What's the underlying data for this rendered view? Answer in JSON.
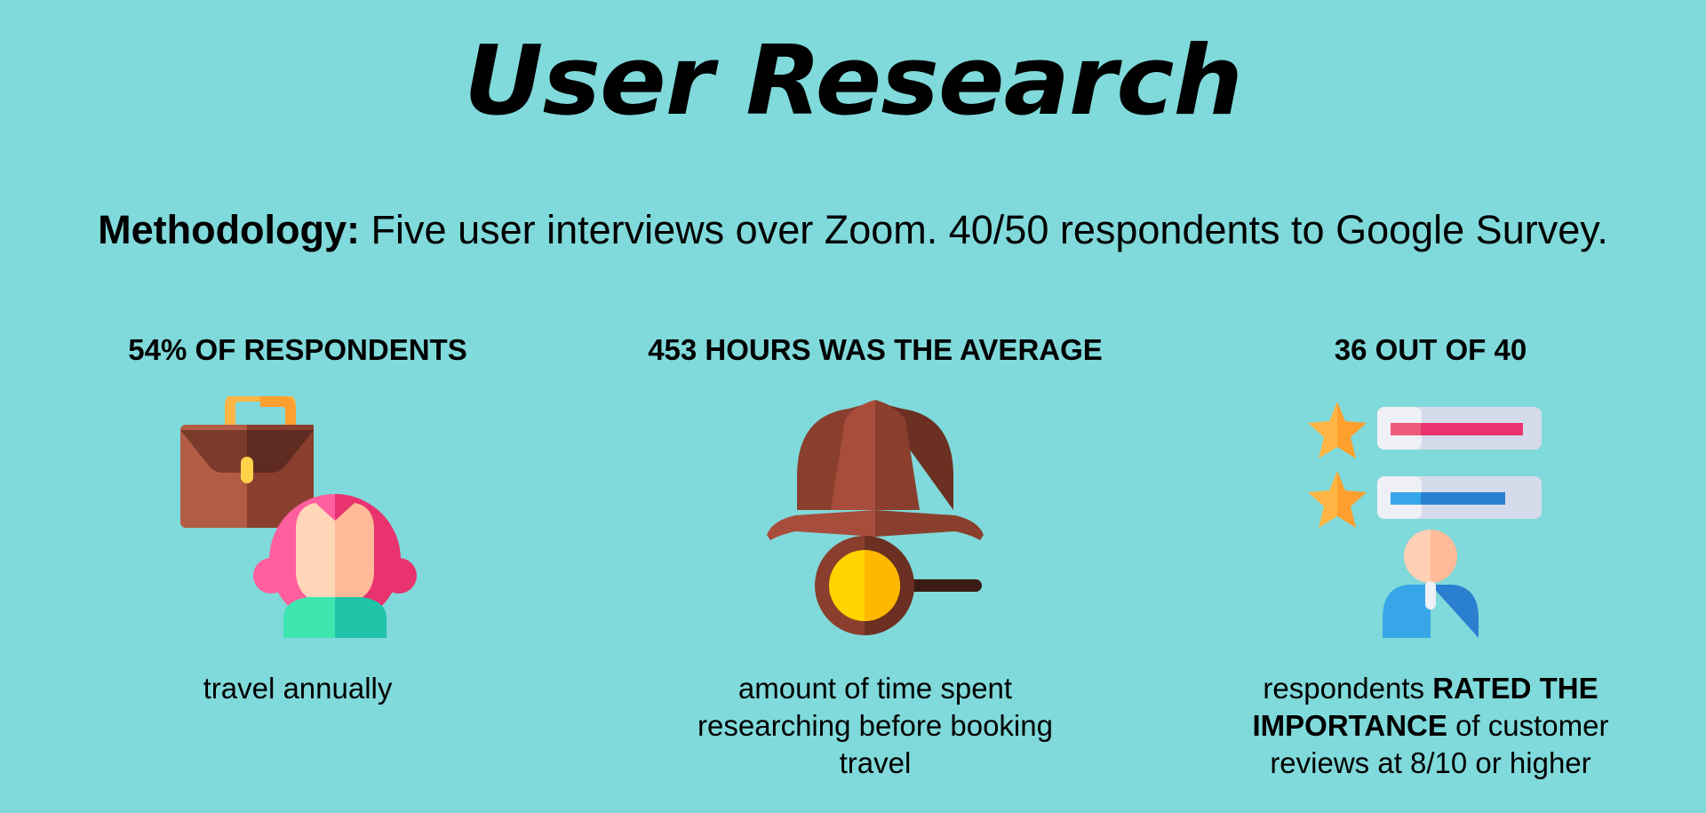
{
  "title": "User Research",
  "methodology": {
    "label": "Methodology:",
    "text": " Five user interviews over Zoom. 40/50 respondents to Google Survey."
  },
  "stats": [
    {
      "heading": "54% OF RESPONDENTS",
      "icon": "traveler-briefcase-icon",
      "caption": "travel annually"
    },
    {
      "heading": "453 HOURS WAS THE AVERAGE",
      "icon": "detective-hat-magnifier-icon",
      "caption_line1": "amount of time spent",
      "caption_line2": "researching before booking",
      "caption_line3": "travel"
    },
    {
      "heading": "36 OUT OF 40",
      "icon": "star-rating-reviewer-icon",
      "caption_pre": "respondents ",
      "caption_bold": "RATED THE IMPORTANCE",
      "caption_post": " of customer reviews at 8/10 or higher"
    }
  ],
  "colors": {
    "background": "#80d9da",
    "text": "#000000"
  }
}
